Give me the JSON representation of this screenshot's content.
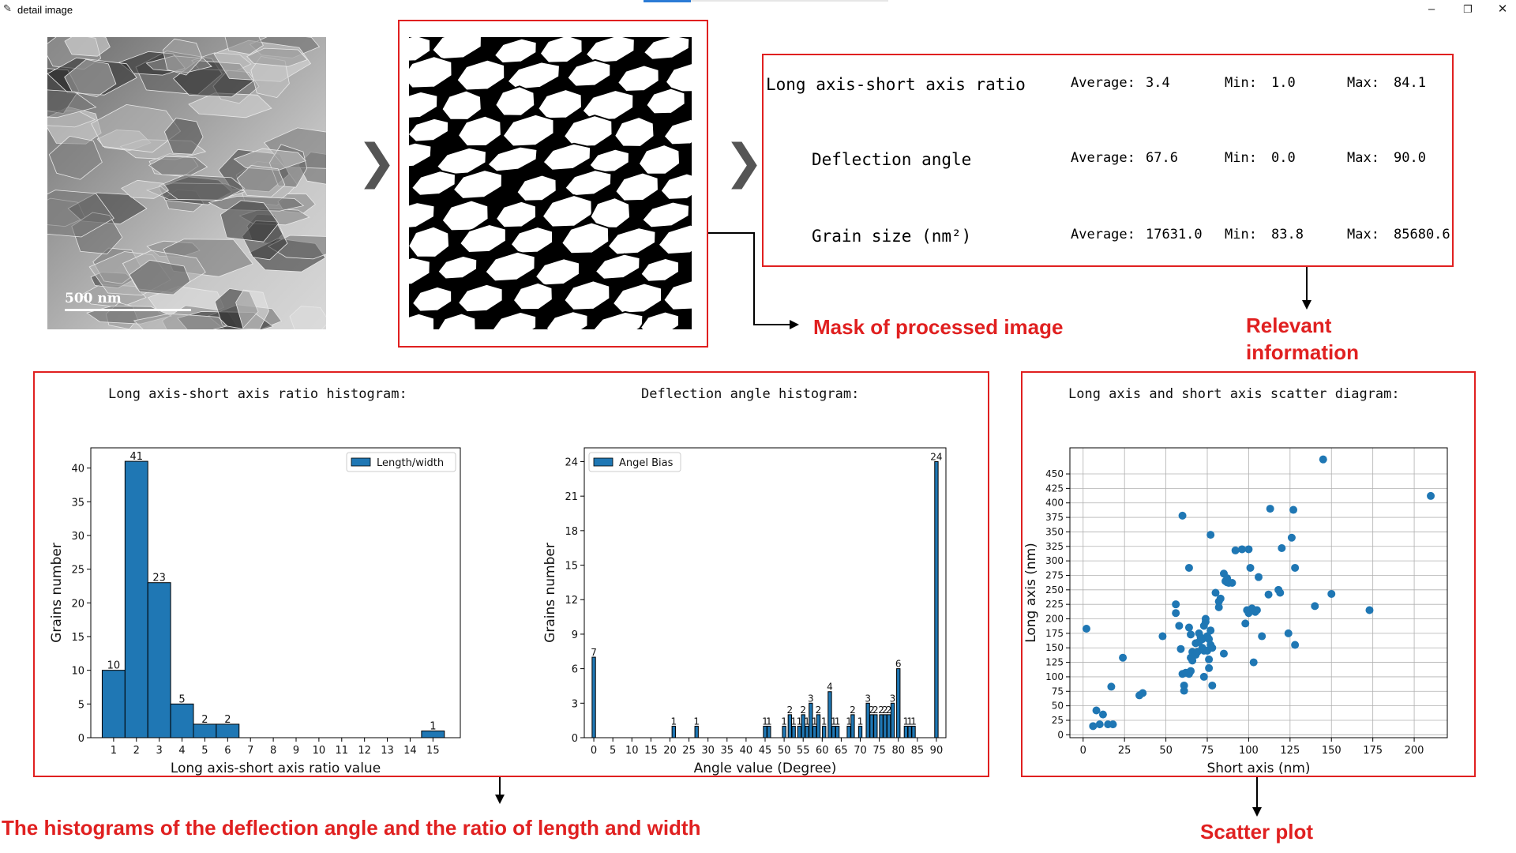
{
  "window": {
    "title": "detail image",
    "icons": {
      "app": "feather-icon",
      "minimize": "minimize-icon",
      "restore": "restore-icon",
      "close": "close-icon"
    }
  },
  "original_image": {
    "scale_label": "500 nm"
  },
  "info": {
    "rows": [
      {
        "label": "Long axis-short axis ratio",
        "avg_label": "Average:",
        "avg": "3.4",
        "min_label": "Min:",
        "min": "1.0",
        "max_label": "Max:",
        "max": "84.1"
      },
      {
        "label": "Deflection angle",
        "avg_label": "Average:",
        "avg": "67.6",
        "min_label": "Min:",
        "min": "0.0",
        "max_label": "Max:",
        "max": "90.0"
      },
      {
        "label": "Grain size (nm²)",
        "avg_label": "Average:",
        "avg": "17631.0",
        "min_label": "Min:",
        "min": "83.8",
        "max_label": "Max:",
        "max": "85680.6"
      }
    ]
  },
  "annotations": {
    "mask": "Mask of processed image",
    "relevant_1": "Relevant",
    "relevant_2": "information",
    "histograms": "The histograms of the deflection angle and the ratio of length and width",
    "scatter": "Scatter plot"
  },
  "chart_data": [
    {
      "type": "bar",
      "title": "Long axis-short axis ratio histogram:",
      "xlabel": "Long axis-short axis ratio value",
      "ylabel": "Grains number",
      "legend": "Length/width",
      "legend_position": "top-right",
      "color": "#1f77b4",
      "xlim": [
        0,
        16.2
      ],
      "ylim": [
        0,
        43
      ],
      "xticks": [
        "1",
        "2",
        "3",
        "4",
        "5",
        "6",
        "7",
        "8",
        "9",
        "10",
        "11",
        "12",
        "13",
        "14",
        "15"
      ],
      "yticks": [
        0,
        5,
        10,
        15,
        20,
        25,
        30,
        35,
        40
      ],
      "bars": [
        {
          "x0": 0.5,
          "x1": 1.5,
          "value": 10
        },
        {
          "x0": 1.5,
          "x1": 2.5,
          "value": 41
        },
        {
          "x0": 2.5,
          "x1": 3.5,
          "value": 23
        },
        {
          "x0": 3.5,
          "x1": 4.5,
          "value": 5
        },
        {
          "x0": 4.5,
          "x1": 5.5,
          "value": 2
        },
        {
          "x0": 5.5,
          "x1": 6.5,
          "value": 2
        },
        {
          "x0": 14.5,
          "x1": 15.5,
          "value": 1
        }
      ]
    },
    {
      "type": "bar",
      "title": "Deflection angle histogram:",
      "xlabel": "Angle value (Degree)",
      "ylabel": "Grains number",
      "legend": "Angel Bias",
      "legend_position": "top-left",
      "color": "#1f77b4",
      "xlim": [
        -2.5,
        92.5
      ],
      "ylim": [
        0,
        25.2
      ],
      "xticks": [
        "0",
        "5",
        "10",
        "15",
        "20",
        "25",
        "30",
        "35",
        "40",
        "45",
        "50",
        "55",
        "60",
        "65",
        "70",
        "75",
        "80",
        "85",
        "90"
      ],
      "yticks": [
        0,
        3,
        6,
        9,
        12,
        15,
        18,
        21,
        24
      ],
      "bars": [
        {
          "x": 0,
          "value": 7
        },
        {
          "x": 21,
          "value": 1
        },
        {
          "x": 27,
          "value": 1
        },
        {
          "x": 45,
          "value": 1
        },
        {
          "x": 46,
          "value": 1
        },
        {
          "x": 50,
          "value": 1
        },
        {
          "x": 51.5,
          "value": 2
        },
        {
          "x": 52.5,
          "value": 1
        },
        {
          "x": 54,
          "value": 1
        },
        {
          "x": 55,
          "value": 2
        },
        {
          "x": 56,
          "value": 1
        },
        {
          "x": 57,
          "value": 3
        },
        {
          "x": 58,
          "value": 1
        },
        {
          "x": 59,
          "value": 2
        },
        {
          "x": 60.5,
          "value": 1
        },
        {
          "x": 62,
          "value": 4
        },
        {
          "x": 63,
          "value": 1
        },
        {
          "x": 64,
          "value": 1
        },
        {
          "x": 67,
          "value": 1
        },
        {
          "x": 68,
          "value": 2
        },
        {
          "x": 70,
          "value": 1
        },
        {
          "x": 72,
          "value": 3
        },
        {
          "x": 73,
          "value": 2
        },
        {
          "x": 74,
          "value": 2
        },
        {
          "x": 75.5,
          "value": 2
        },
        {
          "x": 76.5,
          "value": 2
        },
        {
          "x": 77.5,
          "value": 2
        },
        {
          "x": 78.5,
          "value": 3
        },
        {
          "x": 80,
          "value": 6
        },
        {
          "x": 82,
          "value": 1
        },
        {
          "x": 83,
          "value": 1
        },
        {
          "x": 84,
          "value": 1
        },
        {
          "x": 90,
          "value": 24
        }
      ]
    },
    {
      "type": "scatter",
      "title": "Long axis and short axis scatter diagram:",
      "xlabel": "Short axis (nm)",
      "ylabel": "Long axis (nm)",
      "color": "#1f77b4",
      "grid": true,
      "xlim": [
        -8,
        220
      ],
      "ylim": [
        -5,
        495
      ],
      "xticks": [
        0,
        25,
        50,
        75,
        100,
        125,
        150,
        175,
        200
      ],
      "yticks": [
        0,
        25,
        50,
        75,
        100,
        125,
        150,
        175,
        200,
        225,
        250,
        275,
        300,
        325,
        350,
        375,
        400,
        425,
        450
      ],
      "points": [
        [
          2,
          183
        ],
        [
          6,
          15
        ],
        [
          8,
          42
        ],
        [
          10,
          18
        ],
        [
          12,
          35
        ],
        [
          15,
          18
        ],
        [
          17,
          83
        ],
        [
          18,
          18
        ],
        [
          24,
          133
        ],
        [
          34,
          68
        ],
        [
          36,
          72
        ],
        [
          48,
          170
        ],
        [
          56,
          225
        ],
        [
          56,
          210
        ],
        [
          58,
          188
        ],
        [
          60,
          378
        ],
        [
          59,
          148
        ],
        [
          60,
          105
        ],
        [
          61,
          85
        ],
        [
          61,
          76
        ],
        [
          62,
          107
        ],
        [
          64,
          288
        ],
        [
          64,
          105
        ],
        [
          64,
          185
        ],
        [
          65,
          133
        ],
        [
          65,
          173
        ],
        [
          65,
          110
        ],
        [
          66,
          143
        ],
        [
          66,
          128
        ],
        [
          68,
          158
        ],
        [
          68,
          138
        ],
        [
          69,
          143
        ],
        [
          70,
          160
        ],
        [
          70,
          175
        ],
        [
          71,
          168
        ],
        [
          72,
          165
        ],
        [
          72,
          150
        ],
        [
          73,
          188
        ],
        [
          73,
          145
        ],
        [
          73,
          100
        ],
        [
          74,
          200
        ],
        [
          74,
          195
        ],
        [
          75,
          170
        ],
        [
          75,
          145
        ],
        [
          76,
          165
        ],
        [
          76,
          130
        ],
        [
          76,
          115
        ],
        [
          77,
          345
        ],
        [
          77,
          180
        ],
        [
          77,
          155
        ],
        [
          78,
          150
        ],
        [
          78,
          85
        ],
        [
          80,
          245
        ],
        [
          82,
          220
        ],
        [
          82,
          230
        ],
        [
          83,
          235
        ],
        [
          85,
          278
        ],
        [
          85,
          140
        ],
        [
          86,
          265
        ],
        [
          87,
          263
        ],
        [
          87,
          270
        ],
        [
          88,
          262
        ],
        [
          90,
          262
        ],
        [
          92,
          318
        ],
        [
          96,
          320
        ],
        [
          98,
          192
        ],
        [
          99,
          215
        ],
        [
          100,
          210
        ],
        [
          100,
          320
        ],
        [
          101,
          288
        ],
        [
          102,
          218
        ],
        [
          103,
          215
        ],
        [
          103,
          125
        ],
        [
          104,
          212
        ],
        [
          105,
          215
        ],
        [
          106,
          272
        ],
        [
          108,
          170
        ],
        [
          112,
          242
        ],
        [
          113,
          390
        ],
        [
          118,
          250
        ],
        [
          119,
          245
        ],
        [
          120,
          322
        ],
        [
          124,
          175
        ],
        [
          126,
          340
        ],
        [
          127,
          388
        ],
        [
          128,
          155
        ],
        [
          128,
          288
        ],
        [
          140,
          222
        ],
        [
          145,
          475
        ],
        [
          150,
          243
        ],
        [
          173,
          215
        ],
        [
          210,
          412
        ]
      ]
    }
  ]
}
